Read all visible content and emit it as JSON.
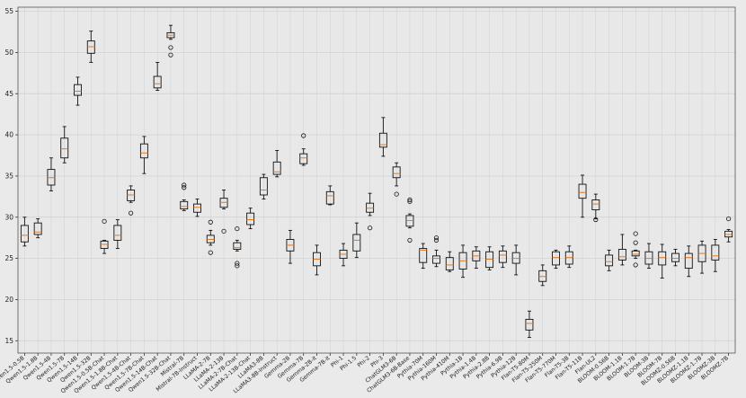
{
  "chart_data": {
    "type": "boxplot",
    "title": "",
    "xlabel": "",
    "ylabel": "",
    "ylim": [
      13.5,
      55.5
    ],
    "yticks": [
      15,
      20,
      25,
      30,
      35,
      40,
      45,
      50,
      55
    ],
    "grid": true,
    "colors": {
      "background": "#eaeaea",
      "plot_bg": "#e8e8e8",
      "grid": "#cfcfcf",
      "box": "#111111",
      "median": "#e07b26",
      "flier": "#111111"
    },
    "categories": [
      "Qwen1.5-0.5B",
      "Qwen1.5-1.8B",
      "Qwen1.5-4B",
      "Qwen1.5-7B",
      "Qwen1.5-14B",
      "Qwen1.5-32B",
      "Qwen1.5-0.5B-Chat",
      "Qwen1.5-1.8B-Chat",
      "Qwen1.5-4B-Chat",
      "Qwen1.5-7B-Chat",
      "Qwen1.5-14B-Chat",
      "Qwen1.5-32B-Chat",
      "Mistral-7B",
      "Mistral-7B-Instruct",
      "LLaMA-2-7B",
      "LLaMA-2-13B",
      "LLaMA-2-7B-Chat",
      "LLaMA-2-13B-Chat",
      "LLaMA3-8B",
      "LLaMA3-8B-Instruct",
      "Gemma-2B",
      "Gemma-7B",
      "Gemma-2B-it",
      "Gemma-7B-it",
      "Phi-1",
      "Phi-1.5",
      "Phi-2",
      "Phi-3",
      "ChatGLM3-6B",
      "ChatGLM3-6B-Base",
      "Pythia-70M",
      "Pythia-160M",
      "Pythia-410M",
      "Pythia-1B",
      "Pythia-1.4B",
      "Pythia-2.8B",
      "Pythia-6.9B",
      "Pythia-12B",
      "Flan-T5-80M",
      "Flan-T5-250M",
      "Flan-T5-770M",
      "Flan-T5-3B",
      "Flan-T5-11B",
      "Flan-UL2",
      "BLOOM-0.56B",
      "BLOOM-1.1B",
      "BLOOM-1.7B",
      "BLOOM-3B",
      "BLOOM-7B",
      "BLOOMZ-0.56B",
      "BLOOMZ-1.1B",
      "BLOOMZ-1.7B",
      "BLOOMZ-3B",
      "BLOOMZ-7B"
    ],
    "boxes": [
      {
        "name": "Qwen1.5-0.5B",
        "whislo": 26.5,
        "q1": 27.0,
        "med": 27.8,
        "q3": 29.0,
        "whishi": 30.0,
        "fliers": []
      },
      {
        "name": "Qwen1.5-1.8B",
        "whislo": 27.5,
        "q1": 27.9,
        "med": 28.2,
        "q3": 29.3,
        "whishi": 29.8,
        "fliers": []
      },
      {
        "name": "Qwen1.5-4B",
        "whislo": 33.2,
        "q1": 33.9,
        "med": 34.8,
        "q3": 35.8,
        "whishi": 37.2,
        "fliers": []
      },
      {
        "name": "Qwen1.5-7B",
        "whislo": 36.6,
        "q1": 37.2,
        "med": 38.3,
        "q3": 39.6,
        "whishi": 41.0,
        "fliers": []
      },
      {
        "name": "Qwen1.5-14B",
        "whislo": 43.6,
        "q1": 44.8,
        "med": 45.3,
        "q3": 46.1,
        "whishi": 47.0,
        "fliers": []
      },
      {
        "name": "Qwen1.5-32B",
        "whislo": 48.8,
        "q1": 49.9,
        "med": 50.7,
        "q3": 51.4,
        "whishi": 52.6,
        "fliers": []
      },
      {
        "name": "Qwen1.5-0.5B-Chat",
        "whislo": 25.6,
        "q1": 26.2,
        "med": 26.7,
        "q3": 27.1,
        "whishi": 27.2,
        "fliers": [
          29.5
        ]
      },
      {
        "name": "Qwen1.5-1.8B-Chat",
        "whislo": 26.2,
        "q1": 27.2,
        "med": 27.8,
        "q3": 29.0,
        "whishi": 29.7,
        "fliers": []
      },
      {
        "name": "Qwen1.5-4B-Chat",
        "whislo": 31.8,
        "q1": 32.0,
        "med": 32.7,
        "q3": 33.3,
        "whishi": 33.8,
        "fliers": [
          30.5
        ]
      },
      {
        "name": "Qwen1.5-7B-Chat",
        "whislo": 35.3,
        "q1": 37.2,
        "med": 37.8,
        "q3": 38.9,
        "whishi": 39.8,
        "fliers": []
      },
      {
        "name": "Qwen1.5-14B-Chat",
        "whislo": 45.4,
        "q1": 45.7,
        "med": 46.2,
        "q3": 47.1,
        "whishi": 48.8,
        "fliers": []
      },
      {
        "name": "Qwen1.5-32B-Chat",
        "whislo": 51.6,
        "q1": 51.8,
        "med": 52.1,
        "q3": 52.4,
        "whishi": 53.3,
        "fliers": [
          50.6,
          49.7
        ]
      },
      {
        "name": "Mistral-7B",
        "whislo": 30.8,
        "q1": 31.0,
        "med": 31.3,
        "q3": 31.9,
        "whishi": 32.1,
        "fliers": [
          33.9,
          33.6
        ]
      },
      {
        "name": "Mistral-7B-Instruct",
        "whislo": 30.1,
        "q1": 30.6,
        "med": 31.2,
        "q3": 31.6,
        "whishi": 32.2,
        "fliers": []
      },
      {
        "name": "LLaMA-2-7B",
        "whislo": 26.6,
        "q1": 26.9,
        "med": 27.3,
        "q3": 27.8,
        "whishi": 28.4,
        "fliers": [
          29.4,
          25.7
        ]
      },
      {
        "name": "LLaMA-2-13B",
        "whislo": 31.0,
        "q1": 31.2,
        "med": 31.8,
        "q3": 32.3,
        "whishi": 33.3,
        "fliers": [
          28.3
        ]
      },
      {
        "name": "LLaMA-2-7B-Chat",
        "whislo": 25.9,
        "q1": 26.1,
        "med": 26.3,
        "q3": 26.9,
        "whishi": 27.2,
        "fliers": [
          28.6,
          24.4,
          24.1
        ]
      },
      {
        "name": "LLaMA-2-13B-Chat",
        "whislo": 28.6,
        "q1": 29.1,
        "med": 29.7,
        "q3": 30.5,
        "whishi": 31.1,
        "fliers": []
      },
      {
        "name": "LLaMA3-8B",
        "whislo": 32.2,
        "q1": 32.7,
        "med": 33.3,
        "q3": 34.8,
        "whishi": 35.2,
        "fliers": []
      },
      {
        "name": "LLaMA3-8B-Instruct",
        "whislo": 34.9,
        "q1": 35.2,
        "med": 35.5,
        "q3": 36.7,
        "whishi": 38.1,
        "fliers": []
      },
      {
        "name": "Gemma-2B",
        "whislo": 24.4,
        "q1": 25.9,
        "med": 26.6,
        "q3": 27.3,
        "whishi": 28.4,
        "fliers": []
      },
      {
        "name": "Gemma-7B",
        "whislo": 36.3,
        "q1": 36.5,
        "med": 37.2,
        "q3": 37.7,
        "whishi": 38.3,
        "fliers": [
          39.9
        ]
      },
      {
        "name": "Gemma-2B-it",
        "whislo": 23.0,
        "q1": 24.1,
        "med": 24.9,
        "q3": 25.7,
        "whishi": 26.6,
        "fliers": []
      },
      {
        "name": "Gemma-7B-it",
        "whislo": 31.5,
        "q1": 31.6,
        "med": 32.6,
        "q3": 33.1,
        "whishi": 33.8,
        "fliers": []
      },
      {
        "name": "Phi-1",
        "whislo": 24.1,
        "q1": 25.0,
        "med": 25.5,
        "q3": 26.0,
        "whishi": 26.8,
        "fliers": []
      },
      {
        "name": "Phi-1.5",
        "whislo": 25.1,
        "q1": 25.9,
        "med": 27.2,
        "q3": 27.9,
        "whishi": 29.3,
        "fliers": []
      },
      {
        "name": "Phi-2",
        "whislo": 30.2,
        "q1": 30.6,
        "med": 31.1,
        "q3": 31.7,
        "whishi": 32.9,
        "fliers": [
          28.7
        ]
      },
      {
        "name": "Phi-3",
        "whislo": 37.4,
        "q1": 38.5,
        "med": 38.8,
        "q3": 40.2,
        "whishi": 42.1,
        "fliers": []
      },
      {
        "name": "ChatGLM3-6B",
        "whislo": 33.8,
        "q1": 34.8,
        "med": 35.3,
        "q3": 36.1,
        "whishi": 36.6,
        "fliers": [
          32.8
        ]
      },
      {
        "name": "ChatGLM3-6B-Base",
        "whislo": 28.7,
        "q1": 28.9,
        "med": 29.6,
        "q3": 30.2,
        "whishi": 30.4,
        "fliers": [
          32.1,
          31.9,
          27.2
        ]
      },
      {
        "name": "Pythia-70M",
        "whislo": 23.8,
        "q1": 24.5,
        "med": 26.0,
        "q3": 26.2,
        "whishi": 26.8,
        "fliers": []
      },
      {
        "name": "Pythia-160M",
        "whislo": 24.0,
        "q1": 24.4,
        "med": 25.0,
        "q3": 25.3,
        "whishi": 26.0,
        "fliers": [
          27.5,
          27.2
        ]
      },
      {
        "name": "Pythia-410M",
        "whislo": 23.4,
        "q1": 23.6,
        "med": 24.2,
        "q3": 25.1,
        "whishi": 25.8,
        "fliers": []
      },
      {
        "name": "Pythia-1B",
        "whislo": 22.7,
        "q1": 23.7,
        "med": 24.7,
        "q3": 25.7,
        "whishi": 26.6,
        "fliers": []
      },
      {
        "name": "Pythia-1.4B",
        "whislo": 23.8,
        "q1": 24.7,
        "med": 25.3,
        "q3": 25.9,
        "whishi": 26.4,
        "fliers": []
      },
      {
        "name": "Pythia-2.8B",
        "whislo": 23.6,
        "q1": 23.9,
        "med": 24.9,
        "q3": 25.8,
        "whishi": 26.4,
        "fliers": []
      },
      {
        "name": "Pythia-6.9B",
        "whislo": 23.9,
        "q1": 24.5,
        "med": 25.4,
        "q3": 25.9,
        "whishi": 26.5,
        "fliers": []
      },
      {
        "name": "Pythia-12B",
        "whislo": 23.0,
        "q1": 24.4,
        "med": 25.0,
        "q3": 25.7,
        "whishi": 26.6,
        "fliers": []
      },
      {
        "name": "Flan-T5-80M",
        "whislo": 15.4,
        "q1": 16.3,
        "med": 17.1,
        "q3": 17.6,
        "whishi": 18.6,
        "fliers": []
      },
      {
        "name": "Flan-T5-250M",
        "whislo": 21.7,
        "q1": 22.2,
        "med": 22.8,
        "q3": 23.5,
        "whishi": 24.2,
        "fliers": []
      },
      {
        "name": "Flan-T5-770M",
        "whislo": 23.8,
        "q1": 24.2,
        "med": 25.1,
        "q3": 25.8,
        "whishi": 26.0,
        "fliers": []
      },
      {
        "name": "Flan-T5-3B",
        "whislo": 23.9,
        "q1": 24.3,
        "med": 25.1,
        "q3": 25.8,
        "whishi": 26.5,
        "fliers": []
      },
      {
        "name": "Flan-T5-11B",
        "whislo": 30.0,
        "q1": 32.3,
        "med": 33.0,
        "q3": 34.0,
        "whishi": 35.1,
        "fliers": []
      },
      {
        "name": "Flan-UL2",
        "whislo": 29.8,
        "q1": 30.9,
        "med": 31.6,
        "q3": 32.1,
        "whishi": 32.8,
        "fliers": [
          29.7
        ]
      },
      {
        "name": "BLOOM-0.56B",
        "whislo": 23.5,
        "q1": 24.1,
        "med": 24.6,
        "q3": 25.4,
        "whishi": 26.0,
        "fliers": []
      },
      {
        "name": "BLOOM-1.1B",
        "whislo": 24.2,
        "q1": 24.8,
        "med": 25.2,
        "q3": 26.1,
        "whishi": 27.9,
        "fliers": []
      },
      {
        "name": "BLOOM-1.7B",
        "whislo": 25.0,
        "q1": 25.3,
        "med": 25.5,
        "q3": 25.9,
        "whishi": 26.0,
        "fliers": [
          28.0,
          26.9,
          24.2
        ]
      },
      {
        "name": "BLOOM-3B",
        "whislo": 23.8,
        "q1": 24.3,
        "med": 25.0,
        "q3": 25.8,
        "whishi": 26.8,
        "fliers": []
      },
      {
        "name": "BLOOM-7B",
        "whislo": 22.6,
        "q1": 24.2,
        "med": 25.1,
        "q3": 25.8,
        "whishi": 26.7,
        "fliers": []
      },
      {
        "name": "BLOOMZ-0.56B",
        "whislo": 24.1,
        "q1": 24.6,
        "med": 25.0,
        "q3": 25.6,
        "whishi": 26.1,
        "fliers": []
      },
      {
        "name": "BLOOMZ-1.1B",
        "whislo": 22.8,
        "q1": 23.8,
        "med": 25.1,
        "q3": 25.6,
        "whishi": 26.5,
        "fliers": []
      },
      {
        "name": "BLOOMZ-1.7B",
        "whislo": 23.2,
        "q1": 24.6,
        "med": 25.6,
        "q3": 26.6,
        "whishi": 27.1,
        "fliers": []
      },
      {
        "name": "BLOOMZ-3B",
        "whislo": 23.4,
        "q1": 24.8,
        "med": 25.3,
        "q3": 26.6,
        "whishi": 27.3,
        "fliers": []
      },
      {
        "name": "BLOOMZ-7B",
        "whislo": 27.0,
        "q1": 27.6,
        "med": 27.9,
        "q3": 28.3,
        "whishi": 28.5,
        "fliers": [
          29.8
        ]
      }
    ]
  }
}
